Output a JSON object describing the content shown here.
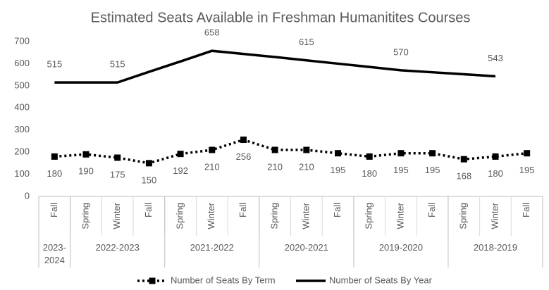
{
  "chart_data": {
    "type": "line",
    "title": "Estimated Seats Available in Freshman Humanitites Courses",
    "categories": [
      "Fall",
      "Spring",
      "Winter",
      "Fall",
      "Spring",
      "Winter",
      "Fall",
      "Spring",
      "Winter",
      "Fall",
      "Spring",
      "Winter",
      "Fall",
      "Spring",
      "Winter",
      "Fall"
    ],
    "category_groups": [
      {
        "label": "2023-2024",
        "size": 1
      },
      {
        "label": "2022-2023",
        "size": 3
      },
      {
        "label": "2021-2022",
        "size": 3
      },
      {
        "label": "2020-2021",
        "size": 3
      },
      {
        "label": "2019-2020",
        "size": 3
      },
      {
        "label": "2018-2019",
        "size": 3
      }
    ],
    "series": [
      {
        "name": "Number of Seats By Term",
        "color": "#000000",
        "style": "dotted",
        "marker": "square",
        "values": [
          180,
          190,
          175,
          150,
          192,
          210,
          256,
          210,
          210,
          195,
          180,
          195,
          195,
          168,
          180,
          195
        ]
      },
      {
        "name": "Number of Seats By Year",
        "color": "#000000",
        "style": "solid",
        "values": [
          515,
          515,
          515,
          563,
          610,
          658,
          644,
          630,
          615,
          600,
          585,
          570,
          561,
          552,
          543,
          null
        ],
        "value_labels": [
          "515",
          null,
          "515",
          null,
          null,
          "658",
          null,
          null,
          "615",
          null,
          null,
          "570",
          null,
          null,
          "543",
          null
        ]
      }
    ],
    "ylim": [
      0,
      700
    ],
    "yticks": [
      0,
      100,
      200,
      300,
      400,
      500,
      600,
      700
    ],
    "grid": false,
    "legend": "bottom"
  }
}
